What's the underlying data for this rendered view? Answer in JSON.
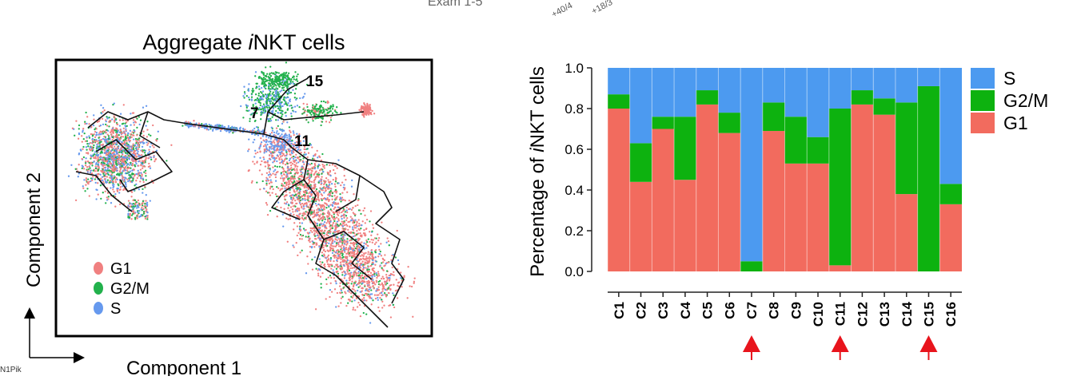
{
  "top_fragments": [
    "Exam 1-5",
    "+40/4",
    "+18/3"
  ],
  "corner_fragment": "N1Pik",
  "umap": {
    "title_prefix": "Aggregate ",
    "title_italic": "i",
    "title_suffix": "NKT cells",
    "x_axis_label": "Component 1",
    "y_axis_label": "Component 2",
    "node_labels": [
      "15",
      "7",
      "11"
    ],
    "legend": [
      {
        "label": "G1",
        "color": "#f08080"
      },
      {
        "label": "G2/M",
        "color": "#22b14c"
      },
      {
        "label": "S",
        "color": "#6699ee"
      }
    ]
  },
  "chart_data": {
    "type": "bar",
    "stacked": true,
    "ylabel_prefix": "Percentage of ",
    "ylabel_italic": "i",
    "ylabel_suffix": "NKT cells",
    "ylim": [
      0,
      1.0
    ],
    "yticks": [
      "0.0",
      "0.2",
      "0.4",
      "0.6",
      "0.8",
      "1.0"
    ],
    "categories": [
      "C1",
      "C2",
      "C3",
      "C4",
      "C5",
      "C6",
      "C7",
      "C8",
      "C9",
      "C10",
      "C11",
      "C12",
      "C13",
      "C14",
      "C15",
      "C16"
    ],
    "series": [
      {
        "name": "G1",
        "color": "#f26b5e",
        "values": [
          0.8,
          0.44,
          0.7,
          0.45,
          0.82,
          0.68,
          0.0,
          0.69,
          0.53,
          0.53,
          0.03,
          0.82,
          0.77,
          0.38,
          0.0,
          0.33
        ]
      },
      {
        "name": "G2/M",
        "color": "#0db20f",
        "values": [
          0.07,
          0.19,
          0.06,
          0.31,
          0.07,
          0.1,
          0.05,
          0.14,
          0.23,
          0.13,
          0.77,
          0.07,
          0.08,
          0.45,
          0.91,
          0.1
        ]
      },
      {
        "name": "S",
        "color": "#4c9af0",
        "values": [
          0.13,
          0.37,
          0.24,
          0.24,
          0.11,
          0.22,
          0.95,
          0.17,
          0.24,
          0.34,
          0.2,
          0.11,
          0.15,
          0.17,
          0.09,
          0.57
        ]
      }
    ],
    "legend_order": [
      "S",
      "G2/M",
      "G1"
    ],
    "legend_position": "right",
    "highlighted_categories": [
      "C7",
      "C11",
      "C15"
    ],
    "arrow_color": "#e8141c"
  }
}
